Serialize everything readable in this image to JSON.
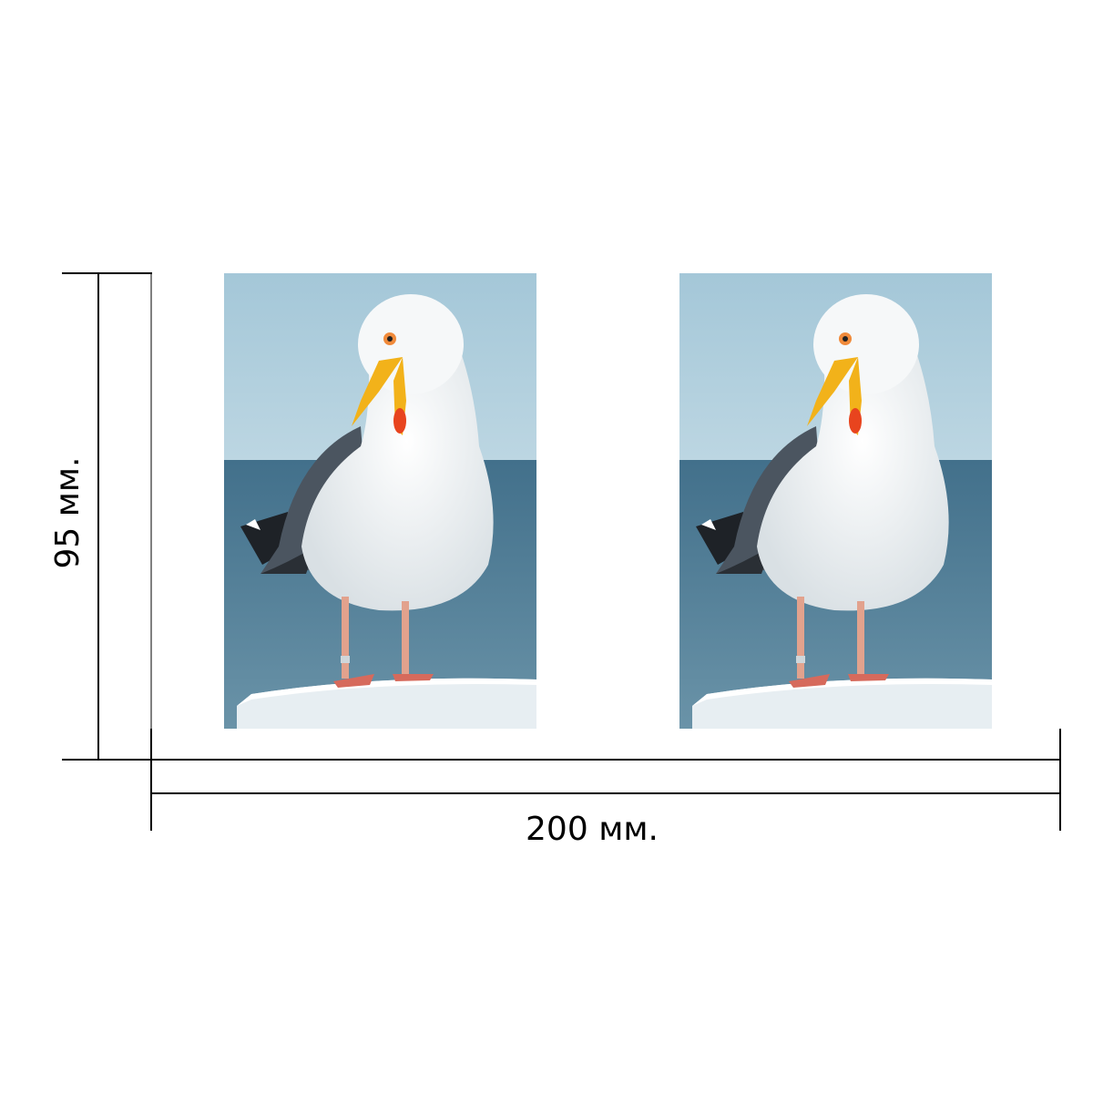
{
  "dimensions": {
    "width_label": "200 мм.",
    "height_label": "95 мм."
  },
  "photos": [
    {
      "id": "left",
      "subject": "seagull-on-post"
    },
    {
      "id": "right",
      "subject": "seagull-on-post"
    }
  ],
  "colors": {
    "sky": "#a9cbdb",
    "sea": "#4e7a92",
    "bird_white": "#f4f6f7",
    "wing_gray": "#4b5560",
    "beak": "#f2b21a",
    "beak_spot": "#e8441e",
    "legs": "#e2a28d",
    "line": "#000000"
  }
}
